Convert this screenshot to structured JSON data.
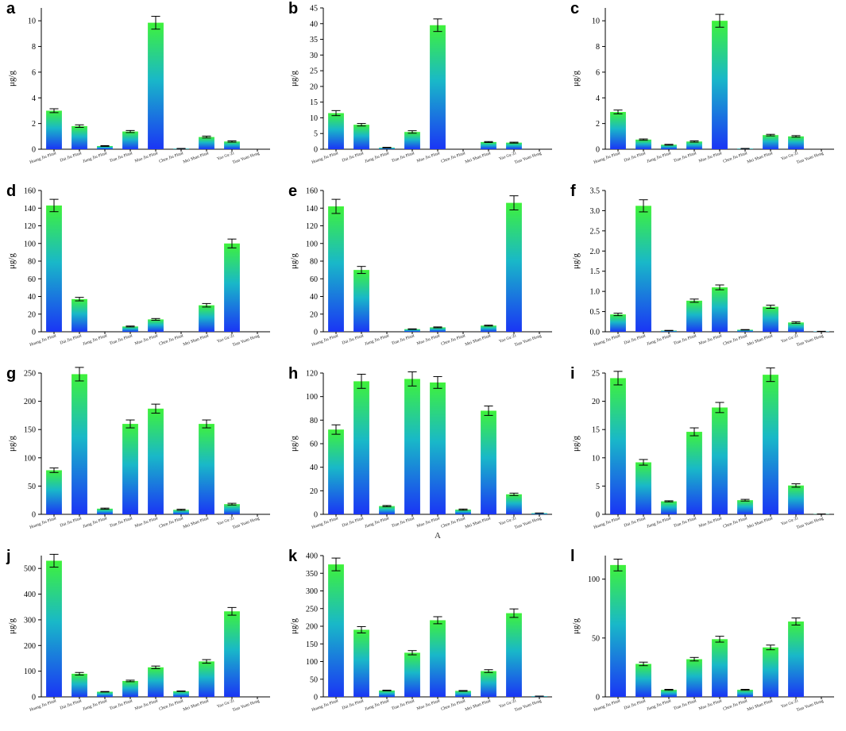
{
  "colors": {
    "bar_top": "#3ff23a",
    "bar_mid": "#19b8c8",
    "bar_bottom": "#1a35f5",
    "axis": "#000000",
    "error": "#000000"
  },
  "chart_data": [
    {
      "panel": "a",
      "type": "bar",
      "ylabel": "μg/g",
      "xlabel": "",
      "ylim": [
        0,
        11
      ],
      "yticks": [
        0,
        2,
        4,
        6,
        8,
        10
      ],
      "ytick_labels": [
        "0",
        "2",
        "4",
        "6",
        "8",
        "10"
      ],
      "categories": [
        "Huang Jiu Plant",
        "Dai Jiu Plant",
        "Jiang Jiu Plant",
        "Tian Jiu Plant",
        "Mao Jiu Plant",
        "Chen Jiu Plant",
        "Mei Shan Plant",
        "Yao Ge Zi",
        "Tian Yuan Hong"
      ],
      "values": [
        3.0,
        1.8,
        0.25,
        1.38,
        9.85,
        0.05,
        0.95,
        0.6,
        0.0
      ],
      "errors": [
        0.15,
        0.1,
        0.03,
        0.08,
        0.5,
        0.01,
        0.07,
        0.05,
        0.0
      ]
    },
    {
      "panel": "b",
      "type": "bar",
      "ylabel": "μg/g",
      "xlabel": "",
      "ylim": [
        0,
        45
      ],
      "yticks": [
        0,
        5,
        10,
        15,
        20,
        25,
        30,
        35,
        40,
        45
      ],
      "ytick_labels": [
        "0",
        "5",
        "10",
        "15",
        "20",
        "25",
        "30",
        "35",
        "40",
        "45"
      ],
      "categories": [
        "Huang Jiu Plant",
        "Dai Jiu Plant",
        "Jiang Jiu Plant",
        "Tian Jiu Plant",
        "Mao Jiu Plant",
        "Chen Jiu Plant",
        "Mei Shan Plant",
        "Yao Ge Zi",
        "Tian Yuan Hong"
      ],
      "values": [
        11.5,
        7.8,
        0.5,
        5.5,
        39.5,
        0.0,
        2.3,
        2.1,
        0.0
      ],
      "errors": [
        0.8,
        0.4,
        0.1,
        0.4,
        2.0,
        0.0,
        0.15,
        0.15,
        0.0
      ]
    },
    {
      "panel": "c",
      "type": "bar",
      "ylabel": "μg/g",
      "xlabel": "",
      "ylim": [
        0,
        11
      ],
      "yticks": [
        0,
        2,
        4,
        6,
        8,
        10
      ],
      "ytick_labels": [
        "0",
        "2",
        "4",
        "6",
        "8",
        "10"
      ],
      "categories": [
        "Huang Jiu Plant",
        "Dai Jiu Plant",
        "Jiang Jiu Plant",
        "Tian Jiu Plant",
        "Mao Jiu Plant",
        "Chen Jiu Plant",
        "Mei Shan Plant",
        "Yao Ge Zi",
        "Tian Yuan Hong"
      ],
      "values": [
        2.9,
        0.75,
        0.35,
        0.6,
        10.0,
        0.05,
        1.1,
        1.0,
        0.0
      ],
      "errors": [
        0.15,
        0.05,
        0.03,
        0.05,
        0.5,
        0.01,
        0.06,
        0.06,
        0.0
      ]
    },
    {
      "panel": "d",
      "type": "bar",
      "ylabel": "μg/g",
      "xlabel": "",
      "ylim": [
        0,
        160
      ],
      "yticks": [
        0,
        20,
        40,
        60,
        80,
        100,
        120,
        140,
        160
      ],
      "ytick_labels": [
        "0",
        "20",
        "40",
        "60",
        "80",
        "100",
        "120",
        "140",
        "160"
      ],
      "categories": [
        "Huang Jiu Plant",
        "Dai Jiu Plant",
        "Jiang Jiu Plant",
        "Tian Jiu Plant",
        "Mao Jiu Plant",
        "Chen Jiu Plant",
        "Mei Shan Plant",
        "Yao Ge Zi",
        "Tian Yuan Hong"
      ],
      "values": [
        143,
        37,
        0,
        6,
        14,
        0,
        30,
        100,
        0
      ],
      "errors": [
        7,
        2,
        0,
        0.5,
        1,
        0,
        2,
        5,
        0
      ]
    },
    {
      "panel": "e",
      "type": "bar",
      "ylabel": "μg/g",
      "xlabel": "",
      "ylim": [
        0,
        160
      ],
      "yticks": [
        0,
        20,
        40,
        60,
        80,
        100,
        120,
        140,
        160
      ],
      "ytick_labels": [
        "0",
        "20",
        "40",
        "60",
        "80",
        "100",
        "120",
        "140",
        "160"
      ],
      "categories": [
        "Huang Jiu Plant",
        "Dai Jiu Plant",
        "Jiang Jiu Plant",
        "Tian Jiu Plant",
        "Mao Jiu Plant",
        "Chen Jiu Plant",
        "Mei Shan Plant",
        "Yao Ge Zi",
        "Tian Yuan Hong"
      ],
      "values": [
        142,
        70,
        0,
        3,
        5,
        0,
        7,
        146,
        0
      ],
      "errors": [
        8,
        4,
        0,
        0.3,
        0.5,
        0,
        0.5,
        8,
        0
      ]
    },
    {
      "panel": "f",
      "type": "bar",
      "ylabel": "μg/g",
      "xlabel": "",
      "ylim": [
        0,
        3.5
      ],
      "yticks": [
        0,
        0.5,
        1.0,
        1.5,
        2.0,
        2.5,
        3.0,
        3.5
      ],
      "ytick_labels": [
        "0.0",
        "0.5",
        "1.0",
        "1.5",
        "2.0",
        "2.5",
        "3.0",
        "3.5"
      ],
      "categories": [
        "Huang Jiu Plant",
        "Dai Jiu Plant",
        "Jiang Jiu Plant",
        "Tian Jiu Plant",
        "Mao Jiu Plant",
        "Chen Jiu Plant",
        "Mei Shan Plant",
        "Yao Ge Zi",
        "Tian Yuan Hong"
      ],
      "values": [
        0.43,
        3.12,
        0.03,
        0.77,
        1.1,
        0.05,
        0.62,
        0.23,
        0.01
      ],
      "errors": [
        0.03,
        0.15,
        0.005,
        0.04,
        0.06,
        0.005,
        0.04,
        0.02,
        0.002
      ]
    },
    {
      "panel": "g",
      "type": "bar",
      "ylabel": "μg/g",
      "xlabel": "",
      "ylim": [
        0,
        250
      ],
      "yticks": [
        0,
        50,
        100,
        150,
        200,
        250
      ],
      "ytick_labels": [
        "0",
        "50",
        "100",
        "150",
        "200",
        "250"
      ],
      "categories": [
        "Huang Jiu Plant",
        "Dai Jiu Plant",
        "Jiang Jiu Plant",
        "Tian Jiu Plant",
        "Mao Jiu Plant",
        "Chen Jiu Plant",
        "Mei Shan Plant",
        "Yao Ge Zi",
        "Tian Yuan Hong"
      ],
      "values": [
        78,
        248,
        10,
        160,
        187,
        8,
        160,
        18,
        0
      ],
      "errors": [
        4,
        12,
        1,
        7,
        8,
        1,
        7,
        1.5,
        0
      ]
    },
    {
      "panel": "h",
      "type": "bar",
      "ylabel": "μg/g",
      "xlabel": "A",
      "ylim": [
        0,
        120
      ],
      "yticks": [
        0,
        20,
        40,
        60,
        80,
        100,
        120
      ],
      "ytick_labels": [
        "0",
        "20",
        "40",
        "60",
        "80",
        "100",
        "120"
      ],
      "categories": [
        "Huang Jiu Plant",
        "Dai Jiu Plant",
        "Jiang Jiu Plant",
        "Tian Jiu Plant",
        "Mao Jiu Plant",
        "Chen Jiu Plant",
        "Mei Shan Plant",
        "Yao Ge Zi",
        "Tian Yuan Hong"
      ],
      "values": [
        72,
        113,
        7,
        115,
        112,
        4,
        88,
        17,
        1
      ],
      "errors": [
        4,
        6,
        0.5,
        6,
        5,
        0.5,
        4,
        1,
        0.1
      ]
    },
    {
      "panel": "i",
      "type": "bar",
      "ylabel": "μg/g",
      "xlabel": "",
      "ylim": [
        0,
        25
      ],
      "yticks": [
        0,
        5,
        10,
        15,
        20,
        25
      ],
      "ytick_labels": [
        "0",
        "5",
        "10",
        "15",
        "20",
        "25"
      ],
      "categories": [
        "Huang Jiu Plant",
        "Dai Jiu Plant",
        "Jiang Jiu Plant",
        "Tian Jiu Plant",
        "Mao Jiu Plant",
        "Chen Jiu Plant",
        "Mei Shan Plant",
        "Yao Ge Zi",
        "Tian Yuan Hong"
      ],
      "values": [
        24.1,
        9.2,
        2.3,
        14.6,
        18.9,
        2.5,
        24.7,
        5.1,
        0.05
      ],
      "errors": [
        1.2,
        0.5,
        0.1,
        0.7,
        0.9,
        0.15,
        1.2,
        0.3,
        0.01
      ]
    },
    {
      "panel": "j",
      "type": "bar",
      "ylabel": "μg/g",
      "xlabel": "",
      "ylim": [
        0,
        550
      ],
      "yticks": [
        0,
        100,
        200,
        300,
        400,
        500
      ],
      "ytick_labels": [
        "0",
        "100",
        "200",
        "300",
        "400",
        "500"
      ],
      "categories": [
        "Huang Jiu Plant",
        "Dai Jiu Plant",
        "Jiang Jiu Plant",
        "Tian Jiu Plant",
        "Mao Jiu Plant",
        "Chen Jiu Plant",
        "Mei Shan Plant",
        "Yao Ge Zi",
        "Tian Yuan Hong"
      ],
      "values": [
        530,
        90,
        20,
        62,
        115,
        22,
        138,
        333,
        0
      ],
      "errors": [
        25,
        5,
        1,
        3,
        5,
        1,
        7,
        15,
        0
      ]
    },
    {
      "panel": "k",
      "type": "bar",
      "ylabel": "μg/g",
      "xlabel": "",
      "ylim": [
        0,
        400
      ],
      "yticks": [
        0,
        50,
        100,
        150,
        200,
        250,
        300,
        350,
        400
      ],
      "ytick_labels": [
        "0",
        "50",
        "100",
        "150",
        "200",
        "250",
        "300",
        "350",
        "400"
      ],
      "categories": [
        "Huang Jiu Plant",
        "Dai Jiu Plant",
        "Jiang Jiu Plant",
        "Tian Jiu Plant",
        "Mao Jiu Plant",
        "Chen Jiu Plant",
        "Mei Shan Plant",
        "Yao Ge Zi",
        "Tian Yuan Hong"
      ],
      "values": [
        375,
        190,
        18,
        125,
        217,
        17,
        73,
        237,
        2
      ],
      "errors": [
        18,
        9,
        1,
        6,
        10,
        1,
        4,
        12,
        0.2
      ]
    },
    {
      "panel": "l",
      "type": "bar",
      "ylabel": "μg/g",
      "xlabel": "",
      "ylim": [
        0,
        120
      ],
      "yticks": [
        0,
        50,
        100
      ],
      "ytick_labels": [
        "0",
        "50",
        "100"
      ],
      "categories": [
        "Huang Jiu Plant",
        "Dai Jiu Plant",
        "Jiang Jiu Plant",
        "Tian Jiu Plant",
        "Mao Jiu Plant",
        "Chen Jiu Plant",
        "Mei Shan Plant",
        "Yao Ge Zi",
        "Tian Yuan Hong"
      ],
      "values": [
        112,
        28,
        6,
        32,
        49,
        6,
        42,
        64,
        0
      ],
      "errors": [
        5,
        1.5,
        0.4,
        1.5,
        2.5,
        0.4,
        2,
        3,
        0
      ]
    }
  ]
}
